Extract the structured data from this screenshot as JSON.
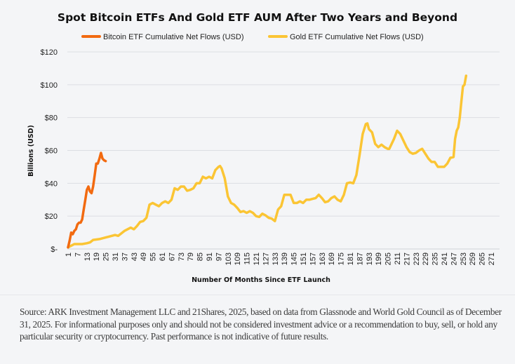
{
  "chart_data": {
    "type": "line",
    "title": "Spot Bitcoin ETFs And Gold ETF AUM After Two Years and Beyond",
    "xlabel": "Number Of Months Since ETF Launch",
    "ylabel": "Billions (USD)",
    "xlim": [
      1,
      271
    ],
    "ylim": [
      0,
      120
    ],
    "x_ticks": [
      1,
      7,
      13,
      19,
      25,
      31,
      37,
      43,
      49,
      55,
      61,
      67,
      73,
      79,
      85,
      91,
      97,
      103,
      109,
      115,
      121,
      127,
      133,
      139,
      145,
      151,
      157,
      163,
      169,
      175,
      181,
      187,
      193,
      199,
      205,
      211,
      217,
      223,
      229,
      235,
      241,
      247,
      253,
      259,
      265,
      271
    ],
    "y_ticks": [
      {
        "value": 0,
        "label": "$-"
      },
      {
        "value": 20,
        "label": "$20"
      },
      {
        "value": 40,
        "label": "$40"
      },
      {
        "value": 60,
        "label": "$60"
      },
      {
        "value": 80,
        "label": "$80"
      },
      {
        "value": 100,
        "label": "$100"
      },
      {
        "value": 120,
        "label": "$120"
      }
    ],
    "grid": "horizontal",
    "legend_position": "top",
    "series": [
      {
        "name": "Bitcoin ETF Cumulative Net Flows (USD)",
        "color": "#f26a10",
        "points": [
          [
            1,
            1
          ],
          [
            2,
            5
          ],
          [
            3,
            10
          ],
          [
            4,
            9
          ],
          [
            5,
            11
          ],
          [
            6,
            12
          ],
          [
            7,
            15
          ],
          [
            8,
            16
          ],
          [
            9,
            16
          ],
          [
            10,
            18
          ],
          [
            11,
            24
          ],
          [
            12,
            30
          ],
          [
            13,
            36
          ],
          [
            14,
            38
          ],
          [
            15,
            35
          ],
          [
            16,
            34
          ],
          [
            17,
            38
          ],
          [
            18,
            45
          ],
          [
            19,
            52
          ],
          [
            20,
            52
          ],
          [
            21,
            55
          ],
          [
            22,
            58.5
          ],
          [
            23,
            55
          ],
          [
            24,
            54
          ],
          [
            25,
            53.5
          ]
        ]
      },
      {
        "name": "Gold ETF Cumulative Net Flows (USD)",
        "color": "#fbc534",
        "points": [
          [
            1,
            1
          ],
          [
            3,
            2
          ],
          [
            5,
            3
          ],
          [
            10,
            3
          ],
          [
            13,
            3.5
          ],
          [
            15,
            4
          ],
          [
            17,
            5.5
          ],
          [
            21,
            6
          ],
          [
            25,
            7
          ],
          [
            27,
            7.5
          ],
          [
            31,
            8.5
          ],
          [
            33,
            8
          ],
          [
            37,
            11
          ],
          [
            41,
            13
          ],
          [
            43,
            12
          ],
          [
            45,
            14
          ],
          [
            47,
            16.5
          ],
          [
            49,
            17
          ],
          [
            51,
            19
          ],
          [
            53,
            27
          ],
          [
            55,
            28
          ],
          [
            57,
            27
          ],
          [
            59,
            26
          ],
          [
            61,
            28
          ],
          [
            63,
            29
          ],
          [
            65,
            28
          ],
          [
            67,
            30
          ],
          [
            69,
            37
          ],
          [
            71,
            36
          ],
          [
            73,
            38
          ],
          [
            75,
            38
          ],
          [
            77,
            35.5
          ],
          [
            79,
            36
          ],
          [
            81,
            37
          ],
          [
            83,
            40
          ],
          [
            85,
            40
          ],
          [
            87,
            44
          ],
          [
            89,
            43
          ],
          [
            91,
            44
          ],
          [
            93,
            43
          ],
          [
            95,
            48
          ],
          [
            97,
            50
          ],
          [
            98,
            50.5
          ],
          [
            99,
            49
          ],
          [
            101,
            43
          ],
          [
            103,
            32
          ],
          [
            105,
            28
          ],
          [
            107,
            27
          ],
          [
            109,
            25
          ],
          [
            111,
            22.5
          ],
          [
            113,
            23
          ],
          [
            115,
            22
          ],
          [
            117,
            23
          ],
          [
            119,
            22
          ],
          [
            121,
            20
          ],
          [
            123,
            19.5
          ],
          [
            125,
            21.5
          ],
          [
            127,
            20.5
          ],
          [
            129,
            19
          ],
          [
            131,
            18.5
          ],
          [
            133,
            17
          ],
          [
            135,
            24
          ],
          [
            137,
            26
          ],
          [
            139,
            33
          ],
          [
            141,
            33
          ],
          [
            143,
            33
          ],
          [
            145,
            28
          ],
          [
            147,
            28
          ],
          [
            149,
            29
          ],
          [
            151,
            28
          ],
          [
            153,
            30
          ],
          [
            155,
            30
          ],
          [
            157,
            30.5
          ],
          [
            159,
            31
          ],
          [
            161,
            33
          ],
          [
            163,
            31
          ],
          [
            165,
            28.5
          ],
          [
            167,
            29
          ],
          [
            169,
            31
          ],
          [
            171,
            32
          ],
          [
            173,
            30
          ],
          [
            175,
            29
          ],
          [
            177,
            33
          ],
          [
            179,
            40
          ],
          [
            181,
            40.5
          ],
          [
            183,
            40
          ],
          [
            185,
            45
          ],
          [
            187,
            57
          ],
          [
            189,
            70
          ],
          [
            191,
            76
          ],
          [
            192,
            76.5
          ],
          [
            193,
            73
          ],
          [
            195,
            71
          ],
          [
            197,
            64
          ],
          [
            199,
            62
          ],
          [
            201,
            63.5
          ],
          [
            203,
            62
          ],
          [
            205,
            61
          ],
          [
            206,
            61
          ],
          [
            209,
            67
          ],
          [
            211,
            72
          ],
          [
            213,
            70
          ],
          [
            215,
            66
          ],
          [
            217,
            62
          ],
          [
            219,
            59
          ],
          [
            221,
            58
          ],
          [
            223,
            58.5
          ],
          [
            225,
            60
          ],
          [
            227,
            61
          ],
          [
            229,
            58
          ],
          [
            231,
            55
          ],
          [
            233,
            53
          ],
          [
            235,
            53
          ],
          [
            237,
            50
          ],
          [
            239,
            50
          ],
          [
            241,
            50
          ],
          [
            243,
            52
          ],
          [
            245,
            55.5
          ],
          [
            247,
            56
          ],
          [
            248,
            67
          ],
          [
            249,
            72
          ],
          [
            250,
            74
          ],
          [
            251,
            80
          ],
          [
            252,
            90
          ],
          [
            253,
            99
          ],
          [
            254,
            100
          ],
          [
            255,
            105.5
          ]
        ]
      }
    ]
  },
  "source_note": "Source: ARK Investment Management LLC and 21Shares, 2025, based on data from Glassnode and World Gold Council as of December 31, 2025. For informational purposes only and should not be considered investment advice or a recommendation to buy, sell, or hold any particular security or cryptocurrency. Past performance is not indicative of future results."
}
